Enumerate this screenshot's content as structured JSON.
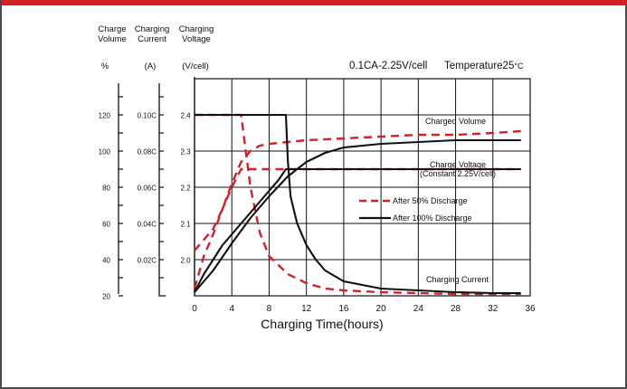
{
  "chart_data": {
    "type": "line",
    "condition": "0.1CA-2.25V/cell",
    "temperature_label": "Temperature25",
    "temperature_unit": "°C",
    "xlabel": "Charging Time(hours)",
    "xlim": [
      0,
      36
    ],
    "x_ticks": [
      "0",
      "4",
      "8",
      "12",
      "16",
      "20",
      "24",
      "28",
      "32",
      "36"
    ],
    "grid": true,
    "axes": {
      "volume": {
        "title_line1": "Charge",
        "title_line2": "Volume",
        "unit": "%",
        "range": [
          20,
          140
        ],
        "ticks": [
          "20",
          "40",
          "60",
          "80",
          "100",
          "120"
        ]
      },
      "current": {
        "title_line1": "Charging",
        "title_line2": "Current",
        "unit": "(A)",
        "range": [
          0,
          0.12
        ],
        "ticks": [
          "0.02C",
          "0.04C",
          "0.06C",
          "0.08C",
          "0.10C"
        ]
      },
      "voltage": {
        "title_line1": "Charging",
        "title_line2": "Voltage",
        "unit": "(V/cell)",
        "range": [
          1.9,
          2.5
        ],
        "ticks": [
          "2.0",
          "2.1",
          "2.2",
          "2.3",
          "2.4"
        ]
      }
    },
    "curve_labels": {
      "volume": "Charged Volume",
      "voltage_line1": "Charge Voltage",
      "voltage_line2": "(Constant 2.25V/cell)",
      "current": "Charging Current"
    },
    "legend": [
      {
        "label": "After 50% Discharge",
        "color": "#d42027",
        "style": "dashed"
      },
      {
        "label": "After 100% Discharge",
        "color": "#111111",
        "style": "solid"
      }
    ],
    "series": [
      {
        "legend": "After 50% Discharge",
        "quantity": "volume",
        "axis": "volume",
        "x": [
          0,
          1,
          2,
          3,
          4,
          5,
          6,
          7,
          8,
          10,
          12,
          16,
          20,
          24,
          28,
          32,
          35
        ],
        "y": [
          45,
          51,
          57,
          68,
          82,
          94,
          100,
          103,
          104,
          105,
          106,
          107,
          108,
          109,
          109,
          110,
          111
        ]
      },
      {
        "legend": "After 50% Discharge",
        "quantity": "voltage",
        "axis": "voltage",
        "x": [
          0,
          1,
          2,
          3,
          4,
          5,
          6,
          8,
          10,
          12,
          16,
          20,
          24,
          28,
          32,
          35
        ],
        "y": [
          1.92,
          2.01,
          2.07,
          2.14,
          2.2,
          2.25,
          2.25,
          2.25,
          2.25,
          2.25,
          2.25,
          2.25,
          2.25,
          2.25,
          2.25,
          2.25
        ]
      },
      {
        "legend": "After 50% Discharge",
        "quantity": "current",
        "axis": "current",
        "x": [
          0,
          2,
          4,
          5,
          5,
          6,
          7,
          8,
          10,
          12,
          14,
          16,
          20,
          24,
          28,
          32,
          35
        ],
        "y": [
          0.1,
          0.1,
          0.1,
          0.1,
          0.1,
          0.06,
          0.035,
          0.022,
          0.012,
          0.007,
          0.004,
          0.003,
          0.002,
          0.0015,
          0.001,
          0.001,
          0.001
        ]
      },
      {
        "legend": "After 100% Discharge",
        "quantity": "volume",
        "axis": "volume",
        "x": [
          0,
          2,
          4,
          6,
          8,
          10,
          12,
          14,
          16,
          20,
          24,
          28,
          32,
          35
        ],
        "y": [
          22,
          34,
          49,
          63,
          75,
          86,
          94,
          99,
          102,
          104,
          105,
          106,
          106,
          106
        ]
      },
      {
        "legend": "After 100% Discharge",
        "quantity": "voltage",
        "axis": "voltage",
        "x": [
          0,
          1,
          2,
          3,
          4,
          5,
          6,
          7,
          8,
          9,
          9.8,
          10,
          12,
          16,
          20,
          24,
          28,
          32,
          35
        ],
        "y": [
          1.91,
          1.96,
          2.0,
          2.04,
          2.07,
          2.1,
          2.13,
          2.16,
          2.19,
          2.22,
          2.25,
          2.25,
          2.25,
          2.25,
          2.25,
          2.25,
          2.25,
          2.25,
          2.25
        ]
      },
      {
        "legend": "After 100% Discharge",
        "quantity": "current",
        "axis": "current",
        "x": [
          0,
          2,
          4,
          6,
          8,
          9.8,
          10,
          10.3,
          11,
          12,
          13,
          14,
          16,
          20,
          24,
          28,
          32,
          35
        ],
        "y": [
          0.1,
          0.1,
          0.1,
          0.1,
          0.1,
          0.1,
          0.075,
          0.055,
          0.04,
          0.028,
          0.02,
          0.014,
          0.008,
          0.004,
          0.003,
          0.002,
          0.0015,
          0.0015
        ]
      }
    ]
  }
}
